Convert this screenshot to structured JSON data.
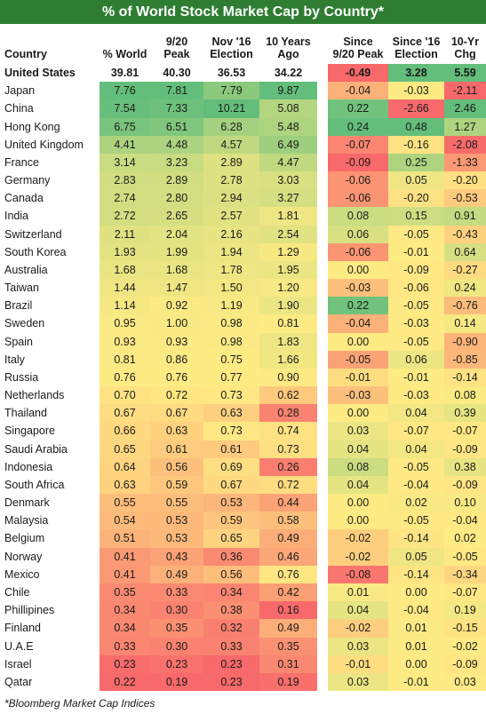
{
  "title": "% of World Stock Market Cap by Country*",
  "columns": [
    {
      "line1": "",
      "line2": "Country"
    },
    {
      "line1": "",
      "line2": "% World"
    },
    {
      "line1": "9/20",
      "line2": "Peak"
    },
    {
      "line1": "Nov '16",
      "line2": "Election"
    },
    {
      "line1": "10 Years",
      "line2": "Ago"
    },
    {
      "line1": "Since",
      "line2": "9/20 Peak"
    },
    {
      "line1": "Since '16",
      "line2": "Election"
    },
    {
      "line1": "10-Yr",
      "line2": "Chg"
    }
  ],
  "rows": [
    {
      "country": "United States",
      "world": "39.81",
      "peak": "40.30",
      "election": "36.53",
      "ago": "34.22",
      "since_peak": "-0.49",
      "since_election": "3.28",
      "chg10": "5.59"
    },
    {
      "country": "Japan",
      "world": "7.76",
      "peak": "7.81",
      "election": "7.79",
      "ago": "9.87",
      "since_peak": "-0.04",
      "since_election": "-0.03",
      "chg10": "-2.11"
    },
    {
      "country": "China",
      "world": "7.54",
      "peak": "7.33",
      "election": "10.21",
      "ago": "5.08",
      "since_peak": "0.22",
      "since_election": "-2.66",
      "chg10": "2.46"
    },
    {
      "country": "Hong Kong",
      "world": "6.75",
      "peak": "6.51",
      "election": "6.28",
      "ago": "5.48",
      "since_peak": "0.24",
      "since_election": "0.48",
      "chg10": "1.27"
    },
    {
      "country": "United Kingdom",
      "world": "4.41",
      "peak": "4.48",
      "election": "4.57",
      "ago": "6.49",
      "since_peak": "-0.07",
      "since_election": "-0.16",
      "chg10": "-2.08"
    },
    {
      "country": "France",
      "world": "3.14",
      "peak": "3.23",
      "election": "2.89",
      "ago": "4.47",
      "since_peak": "-0.09",
      "since_election": "0.25",
      "chg10": "-1.33"
    },
    {
      "country": "Germany",
      "world": "2.83",
      "peak": "2.89",
      "election": "2.78",
      "ago": "3.03",
      "since_peak": "-0.06",
      "since_election": "0.05",
      "chg10": "-0.20"
    },
    {
      "country": "Canada",
      "world": "2.74",
      "peak": "2.80",
      "election": "2.94",
      "ago": "3.27",
      "since_peak": "-0.06",
      "since_election": "-0.20",
      "chg10": "-0.53"
    },
    {
      "country": "India",
      "world": "2.72",
      "peak": "2.65",
      "election": "2.57",
      "ago": "1.81",
      "since_peak": "0.08",
      "since_election": "0.15",
      "chg10": "0.91"
    },
    {
      "country": "Switzerland",
      "world": "2.11",
      "peak": "2.04",
      "election": "2.16",
      "ago": "2.54",
      "since_peak": "0.06",
      "since_election": "-0.05",
      "chg10": "-0.43"
    },
    {
      "country": "South Korea",
      "world": "1.93",
      "peak": "1.99",
      "election": "1.94",
      "ago": "1.29",
      "since_peak": "-0.06",
      "since_election": "-0.01",
      "chg10": "0.64"
    },
    {
      "country": "Australia",
      "world": "1.68",
      "peak": "1.68",
      "election": "1.78",
      "ago": "1.95",
      "since_peak": "0.00",
      "since_election": "-0.09",
      "chg10": "-0.27"
    },
    {
      "country": "Taiwan",
      "world": "1.44",
      "peak": "1.47",
      "election": "1.50",
      "ago": "1.20",
      "since_peak": "-0.03",
      "since_election": "-0.06",
      "chg10": "0.24"
    },
    {
      "country": "Brazil",
      "world": "1.14",
      "peak": "0.92",
      "election": "1.19",
      "ago": "1.90",
      "since_peak": "0.22",
      "since_election": "-0.05",
      "chg10": "-0.76"
    },
    {
      "country": "Sweden",
      "world": "0.95",
      "peak": "1.00",
      "election": "0.98",
      "ago": "0.81",
      "since_peak": "-0.04",
      "since_election": "-0.03",
      "chg10": "0.14"
    },
    {
      "country": "Spain",
      "world": "0.93",
      "peak": "0.93",
      "election": "0.98",
      "ago": "1.83",
      "since_peak": "0.00",
      "since_election": "-0.05",
      "chg10": "-0.90"
    },
    {
      "country": "Italy",
      "world": "0.81",
      "peak": "0.86",
      "election": "0.75",
      "ago": "1.66",
      "since_peak": "-0.05",
      "since_election": "0.06",
      "chg10": "-0.85"
    },
    {
      "country": "Russia",
      "world": "0.76",
      "peak": "0.76",
      "election": "0.77",
      "ago": "0.90",
      "since_peak": "-0.01",
      "since_election": "-0.01",
      "chg10": "-0.14"
    },
    {
      "country": "Netherlands",
      "world": "0.70",
      "peak": "0.72",
      "election": "0.73",
      "ago": "0.62",
      "since_peak": "-0.03",
      "since_election": "-0.03",
      "chg10": "0.08"
    },
    {
      "country": "Thailand",
      "world": "0.67",
      "peak": "0.67",
      "election": "0.63",
      "ago": "0.28",
      "since_peak": "0.00",
      "since_election": "0.04",
      "chg10": "0.39"
    },
    {
      "country": "Singapore",
      "world": "0.66",
      "peak": "0.63",
      "election": "0.73",
      "ago": "0.74",
      "since_peak": "0.03",
      "since_election": "-0.07",
      "chg10": "-0.07"
    },
    {
      "country": "Saudi Arabia",
      "world": "0.65",
      "peak": "0.61",
      "election": "0.61",
      "ago": "0.73",
      "since_peak": "0.04",
      "since_election": "0.04",
      "chg10": "-0.09"
    },
    {
      "country": "Indonesia",
      "world": "0.64",
      "peak": "0.56",
      "election": "0.69",
      "ago": "0.26",
      "since_peak": "0.08",
      "since_election": "-0.05",
      "chg10": "0.38"
    },
    {
      "country": "South Africa",
      "world": "0.63",
      "peak": "0.59",
      "election": "0.67",
      "ago": "0.72",
      "since_peak": "0.04",
      "since_election": "-0.04",
      "chg10": "-0.09"
    },
    {
      "country": "Denmark",
      "world": "0.55",
      "peak": "0.55",
      "election": "0.53",
      "ago": "0.44",
      "since_peak": "0.00",
      "since_election": "0.02",
      "chg10": "0.10"
    },
    {
      "country": "Malaysia",
      "world": "0.54",
      "peak": "0.53",
      "election": "0.59",
      "ago": "0.58",
      "since_peak": "0.00",
      "since_election": "-0.05",
      "chg10": "-0.04"
    },
    {
      "country": "Belgium",
      "world": "0.51",
      "peak": "0.53",
      "election": "0.65",
      "ago": "0.49",
      "since_peak": "-0.02",
      "since_election": "-0.14",
      "chg10": "0.02"
    },
    {
      "country": "Norway",
      "world": "0.41",
      "peak": "0.43",
      "election": "0.36",
      "ago": "0.46",
      "since_peak": "-0.02",
      "since_election": "0.05",
      "chg10": "-0.05"
    },
    {
      "country": "Mexico",
      "world": "0.41",
      "peak": "0.49",
      "election": "0.56",
      "ago": "0.76",
      "since_peak": "-0.08",
      "since_election": "-0.14",
      "chg10": "-0.34"
    },
    {
      "country": "Chile",
      "world": "0.35",
      "peak": "0.33",
      "election": "0.34",
      "ago": "0.42",
      "since_peak": "0.01",
      "since_election": "0.00",
      "chg10": "-0.07"
    },
    {
      "country": "Phillipines",
      "world": "0.34",
      "peak": "0.30",
      "election": "0.38",
      "ago": "0.16",
      "since_peak": "0.04",
      "since_election": "-0.04",
      "chg10": "0.19"
    },
    {
      "country": "Finland",
      "world": "0.34",
      "peak": "0.35",
      "election": "0.32",
      "ago": "0.49",
      "since_peak": "-0.02",
      "since_election": "0.01",
      "chg10": "-0.15"
    },
    {
      "country": "U.A.E",
      "world": "0.33",
      "peak": "0.30",
      "election": "0.33",
      "ago": "0.35",
      "since_peak": "0.03",
      "since_election": "0.01",
      "chg10": "-0.02"
    },
    {
      "country": "Israel",
      "world": "0.23",
      "peak": "0.23",
      "election": "0.23",
      "ago": "0.31",
      "since_peak": "-0.01",
      "since_election": "0.00",
      "chg10": "-0.09"
    },
    {
      "country": "Qatar",
      "world": "0.22",
      "peak": "0.19",
      "election": "0.23",
      "ago": "0.19",
      "since_peak": "0.03",
      "since_election": "-0.01",
      "chg10": "0.03"
    }
  ],
  "colors": {
    "title_bg": "#2e7d32",
    "scale_low": "#f8696b",
    "scale_mid": "#ffeb84",
    "scale_high": "#63be7b"
  },
  "footnote": "*Bloomberg Market Cap Indices"
}
